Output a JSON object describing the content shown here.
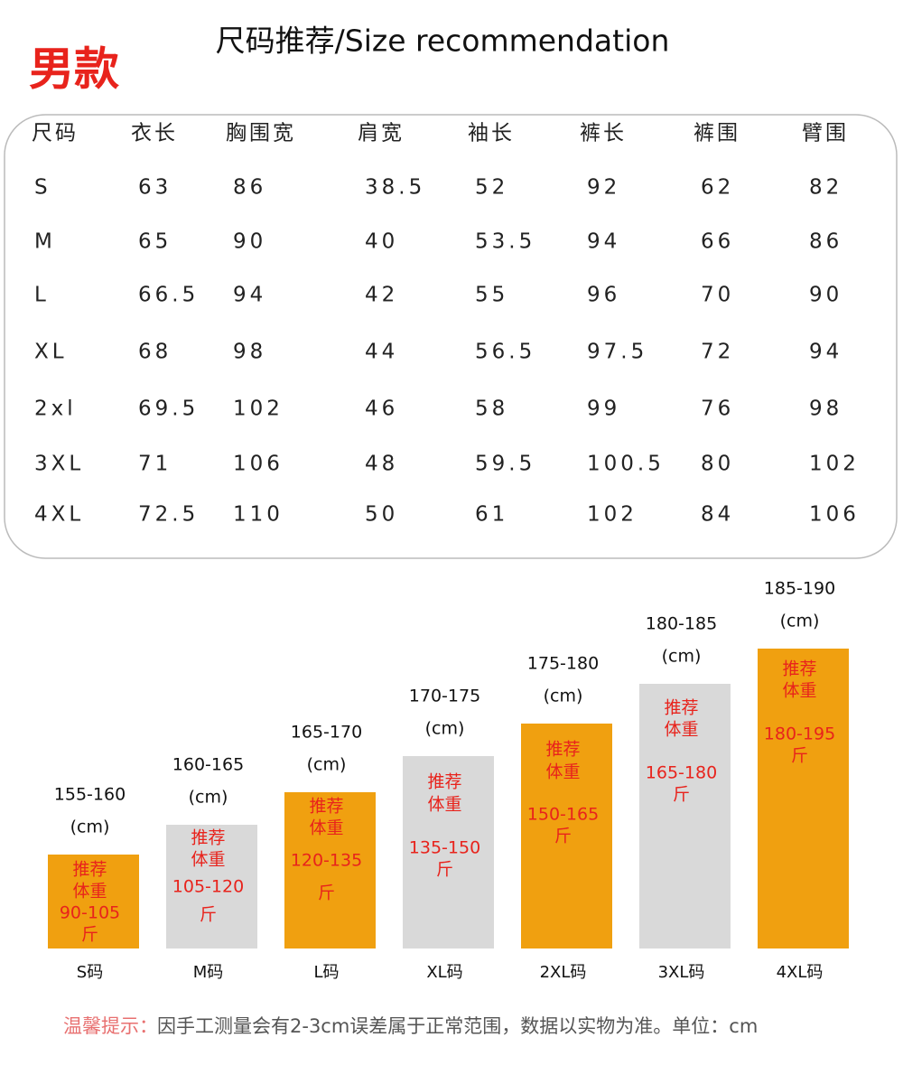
{
  "header": {
    "badge": "男款",
    "title": "尺码推荐/Size recommendation"
  },
  "table": {
    "columns": [
      "尺码",
      "衣长",
      "胸围宽",
      "肩宽",
      "袖长",
      "裤长",
      "裤围",
      "臂围"
    ],
    "rows": [
      [
        "S",
        "63",
        "86",
        "38.5",
        "52",
        "92",
        "62",
        "82"
      ],
      [
        "M",
        "65",
        "90",
        "40",
        "53.5",
        "94",
        "66",
        "86"
      ],
      [
        "L",
        "66.5",
        "94",
        "42",
        "55",
        "96",
        "70",
        "90"
      ],
      [
        "XL",
        "68",
        "98",
        "44",
        "56.5",
        "97.5",
        "72",
        "94"
      ],
      [
        "2xl",
        "69.5",
        "102",
        "46",
        "58",
        "99",
        "76",
        "98"
      ],
      [
        "3XL",
        "71",
        "106",
        "48",
        "59.5",
        "100.5",
        "80",
        "102"
      ],
      [
        "4XL",
        "72.5",
        "110",
        "50",
        "61",
        "102",
        "84",
        "106"
      ]
    ]
  },
  "bars": [
    {
      "height": "155-160",
      "unit": "(cm)",
      "rec": [
        "推荐",
        "体重"
      ],
      "weight": "90-105",
      "jin": "斤",
      "label": "S码"
    },
    {
      "height": "160-165",
      "unit": "(cm)",
      "rec": [
        "推荐",
        "体重"
      ],
      "weight": "105-120",
      "jin": "斤",
      "label": "M码"
    },
    {
      "height": "165-170",
      "unit": "(cm)",
      "rec": [
        "推荐",
        "体重"
      ],
      "weight": "120-135",
      "jin": "斤",
      "label": "L码"
    },
    {
      "height": "170-175",
      "unit": "(cm)",
      "rec": [
        "推荐",
        "体重"
      ],
      "weight": "135-150",
      "jin": "斤",
      "label": "XL码"
    },
    {
      "height": "175-180",
      "unit": "(cm)",
      "rec": [
        "推荐",
        "体重"
      ],
      "weight": "150-165",
      "jin": "斤",
      "label": "2XL码"
    },
    {
      "height": "180-185",
      "unit": "(cm)",
      "rec": [
        "推荐",
        "体重"
      ],
      "weight": "165-180",
      "jin": "斤",
      "label": "3XL码"
    },
    {
      "height": "185-190",
      "unit": "(cm)",
      "rec": [
        "推荐",
        "体重"
      ],
      "weight": "180-195",
      "jin": "斤",
      "label": "4XL码"
    }
  ],
  "note": {
    "label": "温馨提示：",
    "text": "因手工测量会有2-3cm误差属于正常范围，数据以实物为准。单位：cm"
  }
}
